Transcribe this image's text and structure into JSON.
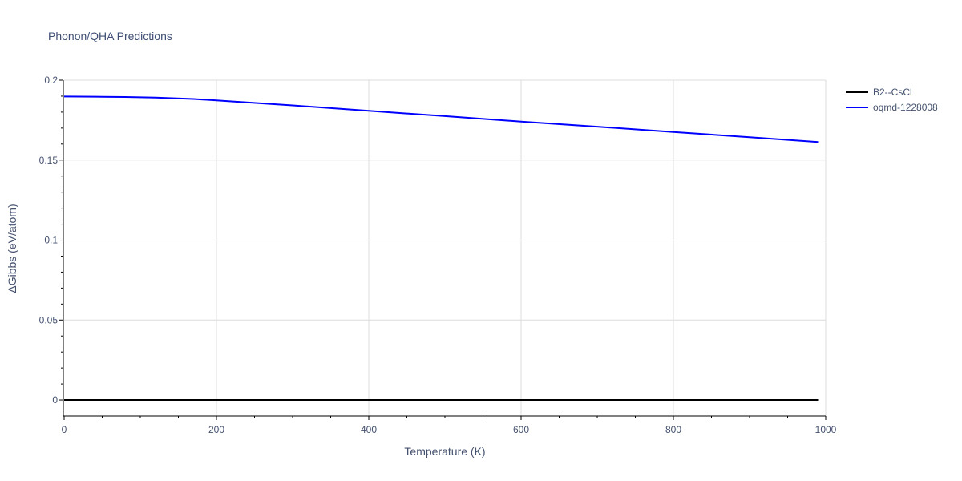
{
  "chart_data": {
    "type": "line",
    "title": "Phonon/QHA Predictions",
    "xlabel": "Temperature (K)",
    "ylabel": "ΔGibbs (eV/atom)",
    "xlim": [
      0,
      1000
    ],
    "ylim": [
      -0.01,
      0.2
    ],
    "xticks": [
      0,
      200,
      400,
      600,
      800,
      1000
    ],
    "xtick_labels": [
      "0",
      "200",
      "400",
      "600",
      "800",
      "1000"
    ],
    "yticks": [
      0,
      0.05,
      0.1,
      0.15,
      0.2
    ],
    "ytick_labels": [
      "0",
      "0.05",
      "0.1",
      "0.15",
      "0.2"
    ],
    "grid": true,
    "legend_position": "top-right",
    "series": [
      {
        "name": "B2--CsCl",
        "color": "#000000",
        "x": [
          0,
          100,
          200,
          300,
          400,
          500,
          600,
          700,
          800,
          900,
          990
        ],
        "y": [
          0,
          0,
          0,
          0,
          0,
          0,
          0,
          0,
          0,
          0,
          0
        ]
      },
      {
        "name": "oqmd-1228008",
        "color": "#0000ff",
        "x": [
          0,
          40,
          80,
          120,
          170,
          200,
          300,
          400,
          500,
          600,
          700,
          800,
          900,
          990
        ],
        "y": [
          0.1898,
          0.1897,
          0.1895,
          0.1891,
          0.1882,
          0.1873,
          0.1842,
          0.1808,
          0.1775,
          0.1741,
          0.1709,
          0.1675,
          0.1643,
          0.1613
        ]
      }
    ]
  }
}
